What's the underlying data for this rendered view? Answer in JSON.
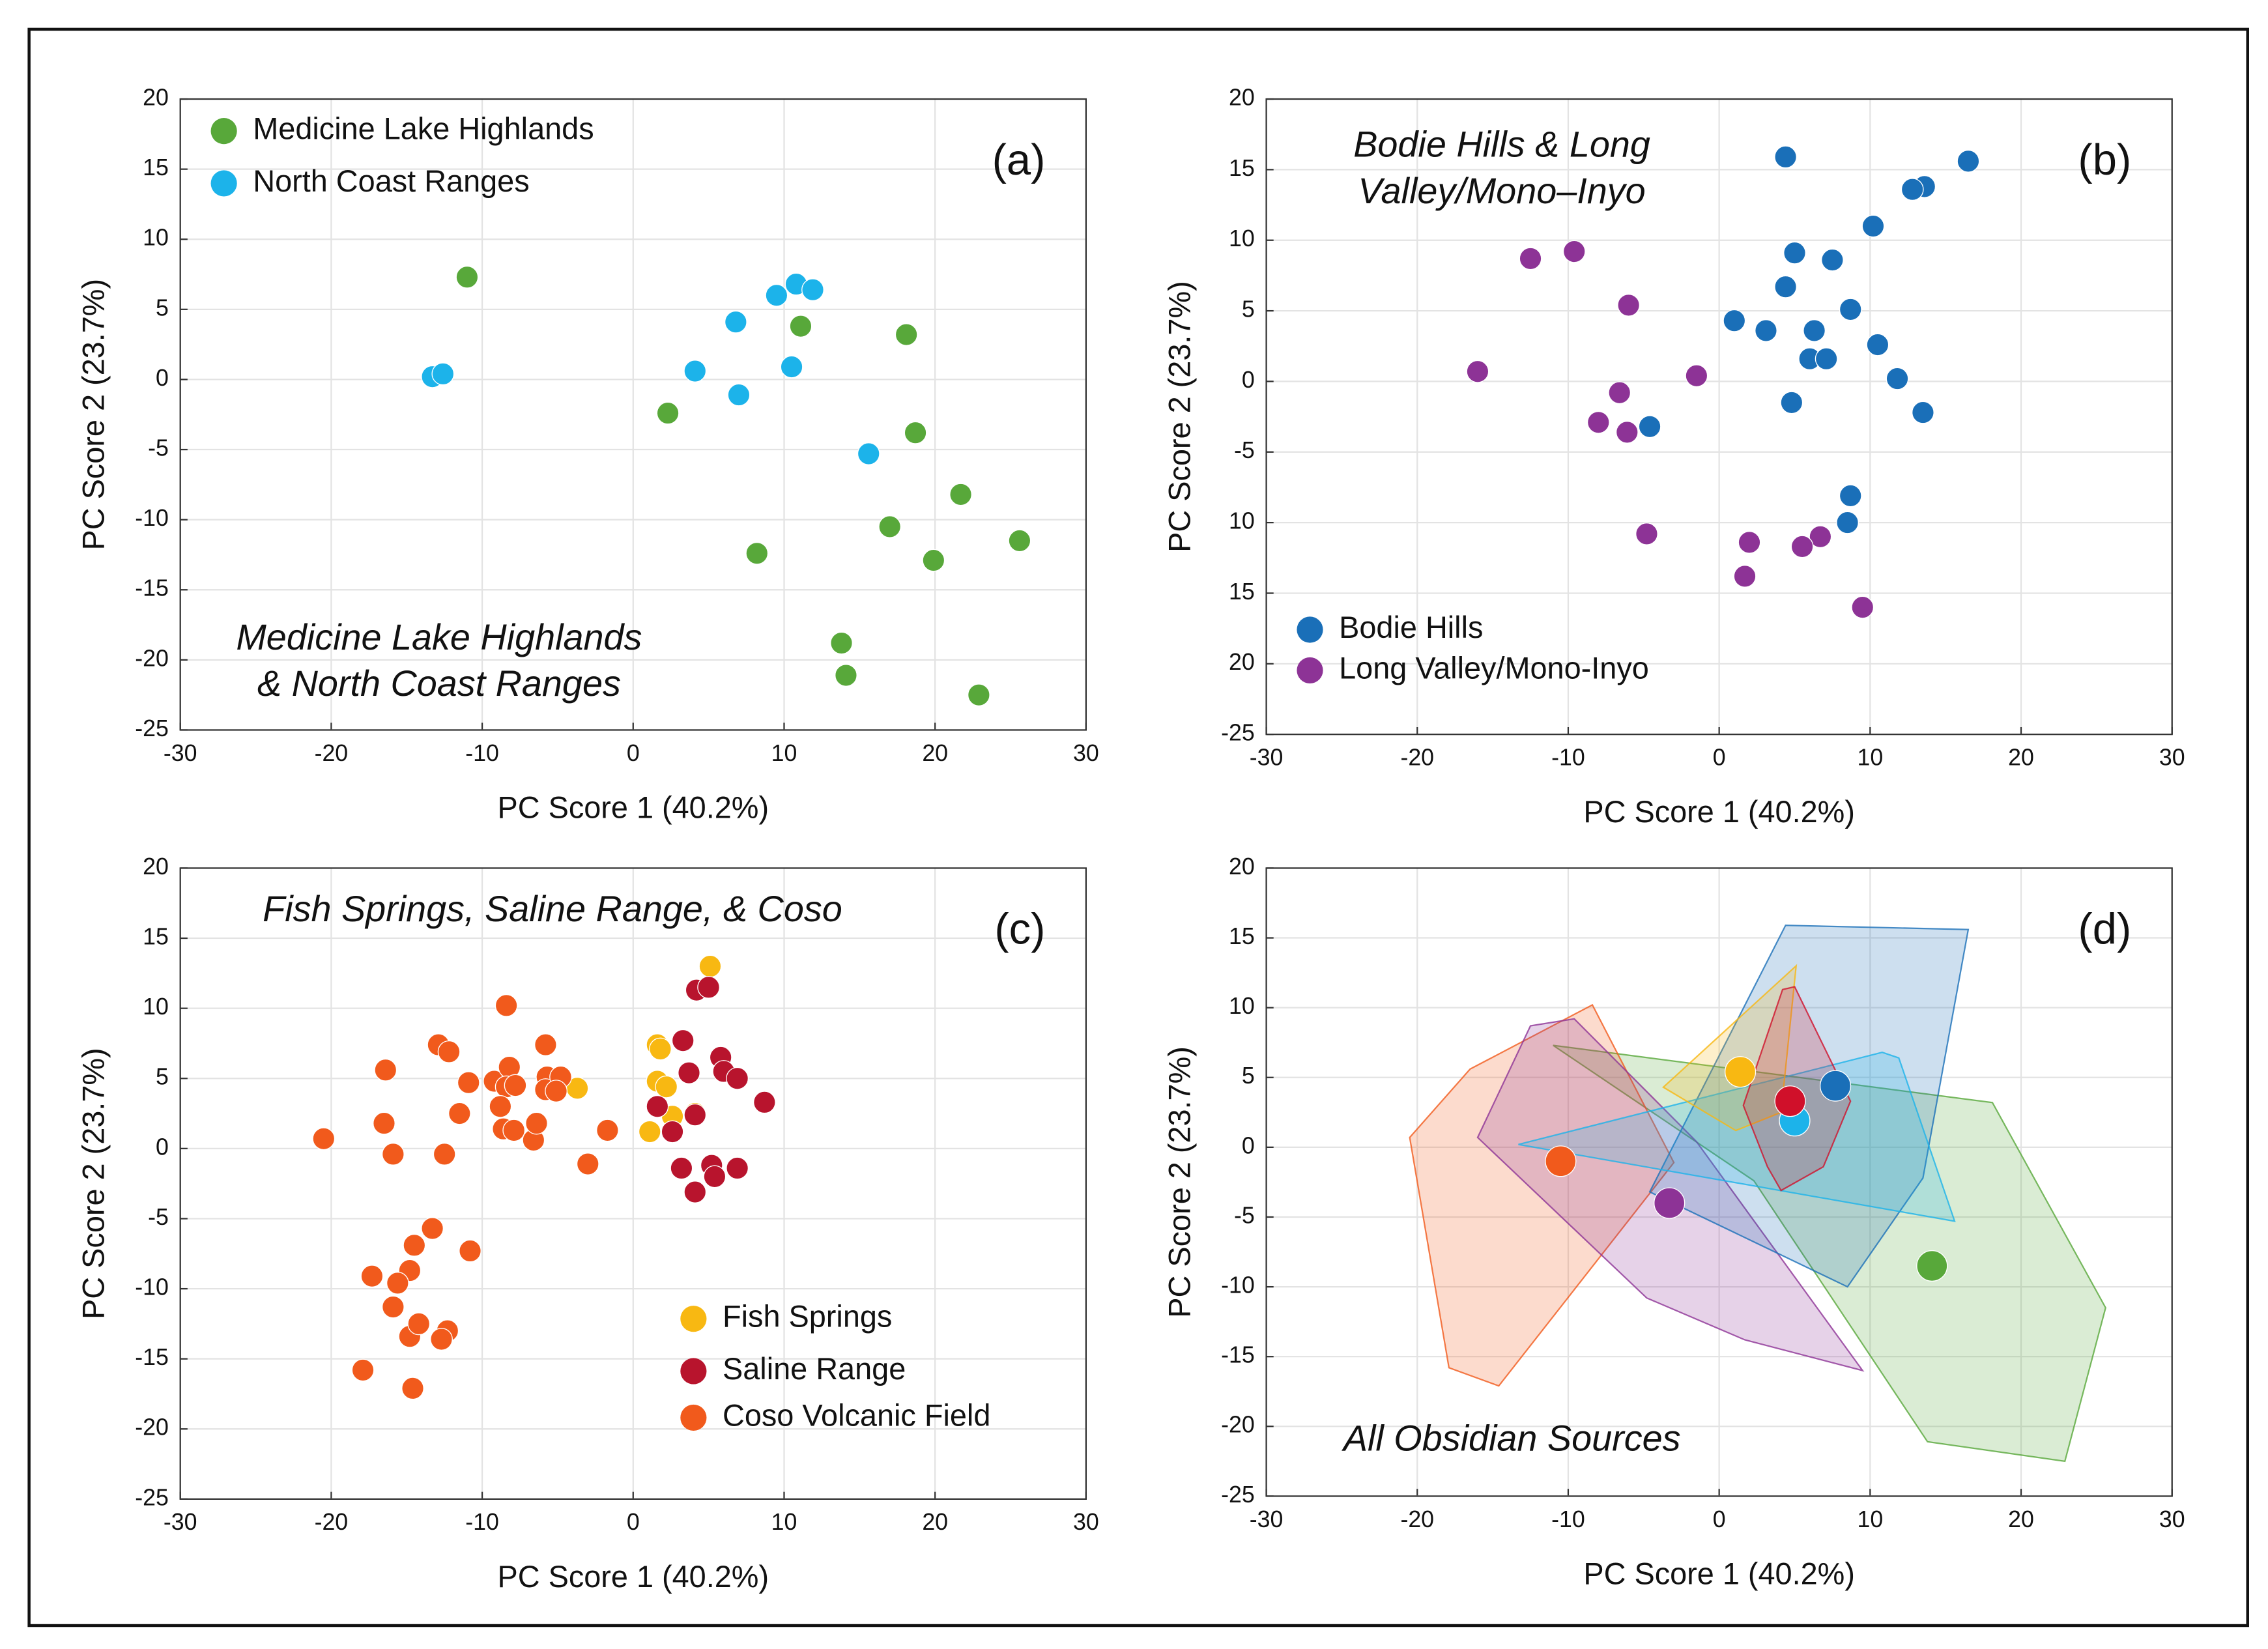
{
  "chart_data": [
    {
      "type": "scatter",
      "title": [
        "Medicine Lake Highlands",
        "& North Coast Ranges"
      ],
      "panel": "(a)",
      "xlabel": "PC Score 1 (40.2%)",
      "ylabel": "PC Score 2 (23.7%)",
      "xlim": [
        -30,
        30
      ],
      "ylim": [
        -25,
        20
      ],
      "xticks": [
        -30,
        -20,
        -10,
        0,
        10,
        20,
        30
      ],
      "yticks": [
        20,
        15,
        10,
        5,
        0,
        -5,
        -10,
        -15,
        -20,
        -25
      ],
      "grid": true,
      "legend_loc": "upper left",
      "series": [
        {
          "name": "Medicine Lake Highlands",
          "color": "#58a83a",
          "x": [
            -11,
            11.1,
            18.1,
            2.3,
            18.7,
            21.7,
            17.0,
            25.6,
            19.9,
            8.2,
            13.8,
            14.1,
            22.9
          ],
          "y": [
            7.3,
            3.8,
            3.2,
            -2.4,
            -3.8,
            -8.2,
            -10.5,
            -11.5,
            -12.9,
            -12.4,
            -18.8,
            -21.1,
            -22.5
          ]
        },
        {
          "name": "North Coast Ranges",
          "color": "#1cb3ea",
          "x": [
            -13.3,
            -12.6,
            4.1,
            6.8,
            7.0,
            9.5,
            10.8,
            11.9,
            10.5,
            15.6
          ],
          "y": [
            0.2,
            0.4,
            0.6,
            4.1,
            -1.1,
            6.0,
            6.8,
            6.4,
            0.9,
            -5.3
          ]
        }
      ]
    },
    {
      "type": "scatter",
      "title": [
        "Bodie Hills & Long",
        "Valley/Mono–Inyo"
      ],
      "panel": "(b)",
      "xlabel": "PC Score 1 (40.2%)",
      "ylabel": "PC Score 2 (23.7%)",
      "xlim": [
        -30,
        30
      ],
      "ylim": [
        -25,
        20
      ],
      "xticks": [
        -30,
        -20,
        -10,
        0,
        10,
        20,
        30
      ],
      "yticks": [
        20,
        15,
        10,
        5,
        0,
        -5,
        {
          "value": -10,
          "label": "10"
        },
        {
          "value": -15,
          "label": "15"
        },
        {
          "value": -20,
          "label": "20"
        },
        -25
      ],
      "grid": true,
      "legend_loc": "lower left",
      "series": [
        {
          "name": "Bodie Hills",
          "color": "#1a6fb8",
          "x": [
            4.4,
            16.5,
            13.6,
            12.8,
            10.2,
            5.0,
            7.5,
            4.4,
            8.7,
            1.0,
            3.1,
            6.3,
            10.5,
            6.0,
            7.1,
            11.8,
            4.8,
            13.5,
            -4.6,
            8.7,
            8.5
          ],
          "y": [
            15.9,
            15.6,
            13.8,
            13.6,
            11.0,
            9.1,
            8.6,
            6.7,
            5.1,
            4.3,
            3.6,
            3.6,
            2.6,
            1.6,
            1.6,
            0.2,
            -1.5,
            -2.2,
            -3.2,
            -8.1,
            -10.0
          ]
        },
        {
          "name": "Long Valley/Mono-Inyo",
          "color": "#8d3396",
          "x": [
            -12.5,
            -9.6,
            -6.0,
            -16.0,
            -1.5,
            -6.6,
            -8.0,
            -6.1,
            -4.8,
            2.0,
            6.7,
            5.5,
            1.7,
            9.5
          ],
          "y": [
            8.7,
            9.2,
            5.4,
            0.7,
            0.4,
            -0.8,
            -2.9,
            -3.6,
            -10.8,
            -11.4,
            -11.0,
            -11.7,
            -13.8,
            -16.0
          ]
        }
      ]
    },
    {
      "type": "scatter",
      "title": [
        "Fish Springs, Saline Range, & Coso"
      ],
      "panel": "(c)",
      "xlabel": "PC Score 1 (40.2%)",
      "ylabel": "PC Score 2 (23.7%)",
      "xlim": [
        -30,
        30
      ],
      "ylim": [
        -25,
        20
      ],
      "xticks": [
        -30,
        -20,
        -10,
        0,
        10,
        20,
        30
      ],
      "yticks": [
        20,
        15,
        10,
        5,
        0,
        -5,
        -10,
        -15,
        -20,
        -25
      ],
      "grid": true,
      "legend_loc": "lower right",
      "series": [
        {
          "name": "Fish Springs",
          "color": "#f8b812",
          "x": [
            5.1,
            1.6,
            1.8,
            1.6,
            2.2,
            -3.7,
            1.1,
            2.6,
            4.1
          ],
          "y": [
            13.0,
            7.4,
            7.1,
            4.8,
            4.4,
            4.3,
            1.2,
            2.3,
            2.5
          ]
        },
        {
          "name": "Saline Range",
          "color": "#b8142d",
          "x": [
            4.2,
            5.0,
            3.3,
            5.8,
            3.7,
            6.0,
            6.9,
            8.7,
            1.6,
            4.1,
            2.6,
            3.2,
            5.2,
            5.4,
            6.9,
            4.1
          ],
          "y": [
            11.3,
            11.5,
            7.7,
            6.5,
            5.4,
            5.5,
            5.0,
            3.3,
            3.0,
            2.4,
            1.2,
            -1.4,
            -1.2,
            -2.0,
            -1.4,
            -3.1
          ]
        },
        {
          "name": "Coso Volcanic Field",
          "color": "#f15a1c",
          "x": [
            -20.5,
            -16.4,
            -16.5,
            -15.9,
            -12.9,
            -12.2,
            -10.9,
            -11.5,
            -12.5,
            -9.2,
            -8.4,
            -8.2,
            -8.4,
            -7.8,
            -8.8,
            -8.6,
            -7.9,
            -6.6,
            -6.4,
            -5.8,
            -5.7,
            -5.8,
            -4.8,
            -5.1,
            -1.7,
            -3.0,
            -13.3,
            -14.5,
            -10.8,
            -17.3,
            -14.8,
            -15.6,
            -15.9,
            -14.8,
            -14.2,
            -12.3,
            -12.7,
            -17.9,
            -14.6
          ],
          "y": [
            0.7,
            5.6,
            1.8,
            -0.4,
            7.4,
            6.9,
            4.7,
            2.5,
            -0.4,
            4.8,
            10.2,
            5.8,
            4.4,
            4.5,
            3.0,
            1.4,
            1.3,
            0.6,
            1.8,
            7.4,
            5.1,
            4.2,
            5.1,
            4.1,
            1.3,
            -1.1,
            -5.7,
            -6.9,
            -7.3,
            -9.1,
            -8.7,
            -9.6,
            -11.3,
            -13.4,
            -12.5,
            -13.0,
            -13.6,
            -15.8,
            -17.1
          ]
        }
      ]
    },
    {
      "type": "hull",
      "title": [
        "All Obsidian Sources"
      ],
      "panel": "(d)",
      "xlabel": "PC Score 1 (40.2%)",
      "ylabel": "PC Score 2 (23.7%)",
      "xlim": [
        -30,
        30
      ],
      "ylim": [
        -25,
        20
      ],
      "xticks": [
        -30,
        -20,
        -10,
        0,
        10,
        20,
        30
      ],
      "yticks": [
        20,
        15,
        10,
        5,
        0,
        -5,
        -10,
        -15,
        -20,
        -25
      ],
      "grid": true,
      "series": [
        {
          "color": "#58a83a",
          "x": [
            14.1
          ],
          "y": [
            -8.5
          ],
          "hull_x": [
            -11,
            18.1,
            25.6,
            22.9,
            13.8,
            2.3
          ],
          "hull_y": [
            7.3,
            3.2,
            -11.5,
            -22.5,
            -21.1,
            -2.4
          ]
        },
        {
          "color": "#f15a1c",
          "x": [
            -10.5
          ],
          "y": [
            -1.0
          ],
          "hull_x": [
            -20.5,
            -16.5,
            -8.4,
            -3.0,
            -14.6,
            -17.9
          ],
          "hull_y": [
            0.7,
            5.6,
            10.2,
            -1.1,
            -17.1,
            -15.8
          ]
        },
        {
          "color": "#8d3396",
          "x": [
            -3.3
          ],
          "y": [
            -4.0
          ],
          "hull_x": [
            -16.0,
            -12.5,
            -9.6,
            -1.5,
            9.5,
            1.7,
            -4.8
          ],
          "hull_y": [
            0.7,
            8.7,
            9.2,
            0.4,
            -16.0,
            -13.8,
            -10.8
          ]
        },
        {
          "color": "#1a6fb8",
          "x": [
            7.7
          ],
          "y": [
            4.4
          ],
          "hull_x": [
            -4.6,
            4.4,
            16.5,
            13.5,
            8.5
          ],
          "hull_y": [
            -3.2,
            15.9,
            15.6,
            -2.2,
            -10.0
          ]
        },
        {
          "color": "#1cb3ea",
          "x": [
            5.0
          ],
          "y": [
            1.9
          ],
          "hull_x": [
            -13.3,
            10.8,
            11.9,
            15.6
          ],
          "hull_y": [
            0.2,
            6.8,
            6.4,
            -5.3
          ]
        },
        {
          "color": "#f8b812",
          "x": [
            1.4
          ],
          "y": [
            5.4
          ],
          "hull_x": [
            -3.7,
            5.1,
            4.1,
            1.1
          ],
          "hull_y": [
            4.3,
            13.0,
            2.5,
            1.2
          ]
        },
        {
          "color": "#d0102a",
          "x": [
            4.7
          ],
          "y": [
            3.3
          ],
          "hull_x": [
            1.6,
            4.2,
            5.0,
            8.7,
            6.9,
            4.1,
            3.2
          ],
          "hull_y": [
            3.0,
            11.3,
            11.5,
            3.3,
            -1.4,
            -3.1,
            -1.4
          ]
        }
      ]
    }
  ]
}
